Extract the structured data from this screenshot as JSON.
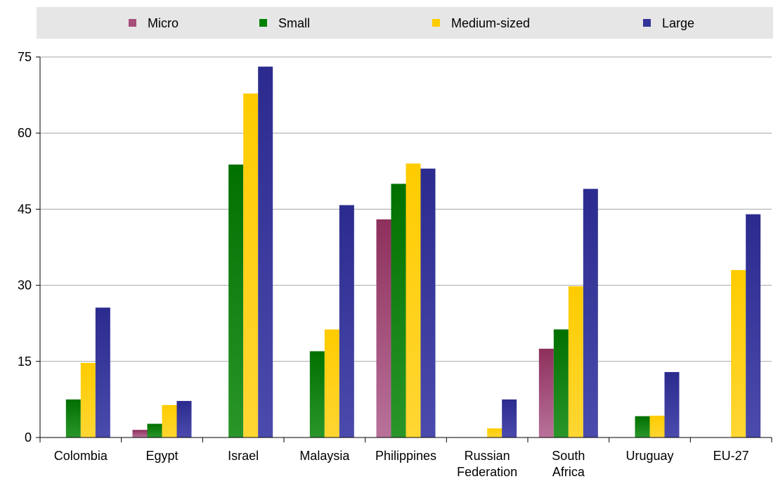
{
  "chart_data": {
    "type": "bar",
    "title": "",
    "xlabel": "",
    "ylabel": "",
    "ylim": [
      0,
      75
    ],
    "yticks": [
      0,
      15,
      30,
      45,
      60,
      75
    ],
    "grid": true,
    "legend": "top",
    "categories": [
      [
        "Colombia"
      ],
      [
        "Egypt"
      ],
      [
        "Israel"
      ],
      [
        "Malaysia"
      ],
      [
        "Philippines"
      ],
      [
        "Russian",
        "Federation"
      ],
      [
        "South",
        "Africa"
      ],
      [
        "Uruguay"
      ],
      [
        "EU-27"
      ]
    ],
    "series": [
      {
        "name": "Micro",
        "color": "#a64d79",
        "values": [
          null,
          1.5,
          null,
          null,
          43,
          null,
          17.5,
          null,
          null
        ]
      },
      {
        "name": "Small",
        "color": "#008000",
        "values": [
          7.5,
          2.7,
          53.8,
          17,
          50,
          null,
          21.3,
          4.2,
          null
        ]
      },
      {
        "name": "Medium-sized",
        "color": "#ffcc00",
        "values": [
          14.7,
          6.4,
          67.8,
          21.3,
          54,
          1.8,
          29.8,
          4.3,
          33
        ]
      },
      {
        "name": "Large",
        "color": "#333399",
        "values": [
          25.6,
          7.2,
          73.1,
          45.8,
          53,
          7.5,
          49,
          12.9,
          44
        ]
      }
    ]
  }
}
